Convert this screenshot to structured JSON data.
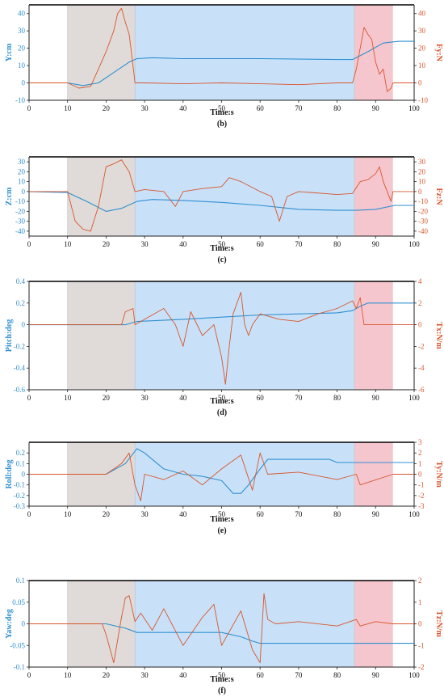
{
  "figure": {
    "colors": {
      "left": "#2f8fd1",
      "right": "#d8552c",
      "zone1": "#e0dbd8",
      "zone2": "#c9e1f8",
      "zone3": "#f6c6cf",
      "axis": "#222222"
    },
    "zones": [
      [
        10,
        27.5
      ],
      [
        27.5,
        84.5
      ],
      [
        84.5,
        94.5
      ]
    ]
  },
  "chart_data": [
    {
      "type": "line",
      "panel": "b",
      "caption": "(b)",
      "xlabel": "Time:s",
      "xlim": [
        0,
        100
      ],
      "xticks": [
        0,
        10,
        20,
        30,
        40,
        50,
        60,
        70,
        80,
        90,
        100
      ],
      "ylabel_left": "Y:cm",
      "ylim_left": [
        -10,
        45
      ],
      "yticks_left": [
        -10,
        0,
        10,
        20,
        30,
        40
      ],
      "ylabel_right": "Fy:N",
      "ylim_right": [
        -10,
        45
      ],
      "yticks_right": [
        -10,
        0,
        10,
        20,
        30,
        40
      ],
      "series": [
        {
          "axis": "left",
          "x": [
            0,
            10,
            14,
            18,
            22,
            26,
            28,
            32,
            40,
            60,
            80,
            84,
            88,
            92,
            96,
            100
          ],
          "y": [
            0,
            0,
            -1.5,
            0,
            6,
            12,
            14,
            14.5,
            14,
            14,
            13.5,
            13.5,
            18,
            23,
            24,
            24
          ]
        },
        {
          "axis": "right",
          "x": [
            0,
            10,
            13,
            16,
            18,
            20,
            22,
            23,
            24,
            25,
            26,
            27,
            27.5,
            30,
            40,
            50,
            60,
            70,
            80,
            84,
            85,
            86,
            87,
            88,
            89,
            90,
            91,
            92,
            93,
            94,
            94.5,
            100
          ],
          "y": [
            0,
            0,
            -3,
            -2,
            8,
            18,
            30,
            40,
            43,
            35,
            28,
            10,
            0,
            0,
            -0.5,
            0,
            -0.5,
            -1,
            0,
            0,
            8,
            20,
            32,
            28,
            25,
            12,
            5,
            8,
            -5,
            -3,
            0,
            0
          ]
        }
      ]
    },
    {
      "type": "line",
      "panel": "c",
      "caption": "(c)",
      "xlabel": "Time:s",
      "xlim": [
        0,
        100
      ],
      "xticks": [
        0,
        10,
        20,
        30,
        40,
        50,
        60,
        70,
        80,
        90,
        100
      ],
      "ylabel_left": "Z:cm",
      "ylim_left": [
        -45,
        35
      ],
      "yticks_left": [
        -40,
        -30,
        -20,
        -10,
        0,
        10,
        20,
        30
      ],
      "ylabel_right": "Fz:N",
      "ylim_right": [
        -45,
        35
      ],
      "yticks_right": [
        -40,
        -30,
        -20,
        -10,
        0,
        10,
        20,
        30
      ],
      "series": [
        {
          "axis": "left",
          "x": [
            0,
            10,
            15,
            20,
            24,
            28,
            32,
            40,
            50,
            60,
            70,
            80,
            85,
            90,
            95,
            100
          ],
          "y": [
            0,
            -1,
            -10,
            -20,
            -17,
            -10,
            -8,
            -9,
            -11,
            -14,
            -18,
            -19,
            -19,
            -18,
            -14,
            -14
          ]
        },
        {
          "axis": "right",
          "x": [
            0,
            10,
            12,
            14,
            16,
            18,
            20,
            22,
            24,
            26,
            27.5,
            30,
            35,
            38,
            40,
            45,
            50,
            52,
            55,
            60,
            63,
            65,
            67,
            70,
            80,
            84,
            86,
            88,
            90,
            91,
            92,
            93,
            94,
            94.5,
            100
          ],
          "y": [
            0,
            0,
            -30,
            -38,
            -40,
            -15,
            25,
            28,
            32,
            20,
            0,
            2,
            0,
            -15,
            0,
            3,
            5,
            14,
            10,
            0,
            -5,
            -30,
            -5,
            0,
            -3,
            -2,
            10,
            12,
            18,
            25,
            10,
            0,
            -10,
            0,
            0
          ]
        }
      ]
    },
    {
      "type": "line",
      "panel": "d",
      "caption": "(d)",
      "xlabel": "Time:s",
      "xlim": [
        0,
        100
      ],
      "xticks": [
        0,
        10,
        20,
        30,
        40,
        50,
        60,
        70,
        80,
        90,
        100
      ],
      "ylabel_left": "Pitch:deg",
      "ylim_left": [
        -0.6,
        0.4
      ],
      "yticks_left": [
        -0.6,
        -0.4,
        -0.2,
        0,
        0.2,
        0.4
      ],
      "ylabel_right": "Tx:N/m",
      "ylim_right": [
        -6,
        4
      ],
      "yticks_right": [
        -6,
        -4,
        -2,
        0,
        2,
        4
      ],
      "series": [
        {
          "axis": "left",
          "x": [
            0,
            25,
            28,
            40,
            50,
            60,
            70,
            80,
            84,
            86,
            88,
            90,
            100
          ],
          "y": [
            0,
            0,
            0.03,
            0.05,
            0.07,
            0.09,
            0.1,
            0.11,
            0.13,
            0.17,
            0.2,
            0.2,
            0.2
          ]
        },
        {
          "axis": "right",
          "x": [
            0,
            24,
            25,
            27,
            27.5,
            30,
            35,
            38,
            40,
            42,
            45,
            48,
            50,
            51,
            52,
            53,
            55,
            56,
            57,
            58,
            60,
            65,
            70,
            75,
            80,
            84,
            85,
            86,
            87,
            94.5,
            100
          ],
          "y": [
            0,
            0,
            1.2,
            1.5,
            0,
            0.5,
            1.5,
            0,
            -2,
            1.2,
            -1,
            0,
            -3,
            -5.5,
            -2,
            1,
            3,
            0,
            -1,
            0,
            1,
            0.5,
            0.3,
            1,
            1.5,
            2.2,
            1.5,
            2.5,
            0,
            0,
            0
          ]
        }
      ]
    },
    {
      "type": "line",
      "panel": "e",
      "caption": "(e)",
      "xlabel": "Time:s",
      "xlim": [
        0,
        100
      ],
      "xticks": [
        0,
        10,
        20,
        30,
        40,
        50,
        60,
        70,
        80,
        90,
        100
      ],
      "ylabel_left": "Roll:deg",
      "ylim_left": [
        -0.3,
        0.3
      ],
      "yticks_left": [
        -0.3,
        -0.2,
        -0.1,
        0,
        0.1,
        0.2
      ],
      "ylabel_right": "Ty:N/m",
      "ylim_right": [
        -3,
        3
      ],
      "yticks_right": [
        -3,
        -2,
        -1,
        0,
        1,
        2,
        3
      ],
      "series": [
        {
          "axis": "left",
          "x": [
            0,
            20,
            25,
            28,
            30,
            35,
            40,
            45,
            50,
            53,
            55,
            57,
            60,
            62,
            70,
            78,
            80,
            85,
            100
          ],
          "y": [
            0,
            0,
            0.1,
            0.24,
            0.2,
            0.05,
            0,
            -0.02,
            -0.06,
            -0.18,
            -0.18,
            -0.1,
            0.05,
            0.14,
            0.14,
            0.14,
            0.11,
            0.11,
            0.11
          ]
        },
        {
          "axis": "right",
          "x": [
            0,
            20,
            24,
            26,
            27.5,
            29,
            30,
            35,
            40,
            45,
            50,
            55,
            58,
            60,
            62,
            70,
            80,
            85,
            86,
            94.5,
            100
          ],
          "y": [
            0,
            0,
            1,
            2,
            -1,
            -2.5,
            0,
            -0.5,
            0.3,
            -1,
            0.5,
            1.8,
            -1.5,
            2,
            0,
            0.2,
            -0.5,
            0,
            -1,
            0,
            0
          ]
        }
      ]
    },
    {
      "type": "line",
      "panel": "f",
      "caption": "(f)",
      "xlabel": "Time:s",
      "xlim": [
        0,
        100
      ],
      "xticks": [
        0,
        10,
        20,
        30,
        40,
        50,
        60,
        70,
        80,
        90,
        100
      ],
      "ylabel_left": "Yaw:deg",
      "ylim_left": [
        -0.1,
        0.1
      ],
      "yticks_left": [
        -0.1,
        -0.05,
        0,
        0.05,
        0.1
      ],
      "ylabel_right": "Tz:N/m",
      "ylim_right": [
        -2,
        2
      ],
      "yticks_right": [
        -2,
        -1,
        0,
        1,
        2
      ],
      "series": [
        {
          "axis": "left",
          "x": [
            0,
            20,
            25,
            28,
            40,
            50,
            55,
            58,
            60,
            62,
            70,
            80,
            100
          ],
          "y": [
            0,
            0,
            -0.01,
            -0.02,
            -0.02,
            -0.02,
            -0.03,
            -0.04,
            -0.045,
            -0.045,
            -0.045,
            -0.045,
            -0.045
          ]
        },
        {
          "axis": "right",
          "x": [
            0,
            19,
            20,
            22,
            24,
            25,
            26,
            27.5,
            29,
            32,
            35,
            40,
            45,
            48,
            50,
            55,
            58,
            60,
            61,
            62,
            64,
            70,
            80,
            85,
            86,
            90,
            94.5,
            100
          ],
          "y": [
            0,
            0,
            -0.5,
            -1.8,
            0.3,
            1.2,
            1.3,
            0.1,
            0.5,
            -0.3,
            0.7,
            -1,
            0.3,
            0.9,
            -1,
            0.6,
            -1.2,
            -1.8,
            1.4,
            0.2,
            0,
            0.1,
            -0.1,
            0.2,
            -0.1,
            0.1,
            0,
            0
          ]
        }
      ]
    }
  ]
}
